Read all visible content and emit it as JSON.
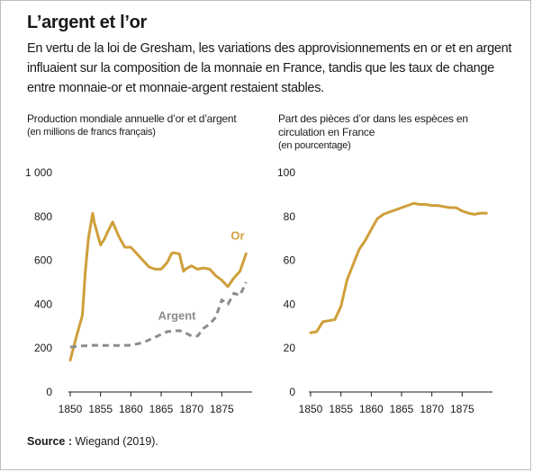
{
  "title": "L’argent et l’or",
  "subtitle": "En vertu de la loi de Gresham, les variations des approvisionnements en or et en argent influaient sur la composition de la monnaie en France, tandis que les taux de change entre monnaie-or et monnaie-argent restaient stables.",
  "source": {
    "label": "Source :",
    "text": "Wiegand (2019)."
  },
  "colors": {
    "gold": "#cf9f3a",
    "silver": "#8c8c8c",
    "axis": "#1a1a1a"
  },
  "chart_data": [
    {
      "type": "line",
      "title": "Production mondiale annuelle d’or et d’argent",
      "subtitle": "(en millions de francs français)",
      "xlabel": "",
      "ylabel": "",
      "xlim": [
        1850,
        1880
      ],
      "ylim": [
        0,
        1000
      ],
      "xticks": [
        1850,
        1855,
        1860,
        1865,
        1870,
        1875
      ],
      "xtick_labels": [
        "1850",
        "1855",
        "1860",
        "1865",
        "1870",
        "1875"
      ],
      "yticks": [
        0,
        200,
        400,
        600,
        800,
        1000
      ],
      "ytick_labels": [
        "0",
        "200",
        "400",
        "600",
        "800",
        "1 000"
      ],
      "grid": false,
      "series": [
        {
          "name": "Or",
          "color": "#cf9f3a",
          "dash": false,
          "x": [
            1850,
            1851,
            1852,
            1852.5,
            1853,
            1853.7,
            1854,
            1855,
            1855.7,
            1856,
            1857,
            1858,
            1859,
            1860,
            1861,
            1862,
            1863,
            1864,
            1865,
            1866,
            1866.7,
            1867,
            1868,
            1868.7,
            1869,
            1870,
            1871,
            1872,
            1873,
            1874,
            1875,
            1876,
            1877,
            1878,
            1879
          ],
          "values": [
            145,
            250,
            350,
            550,
            700,
            815,
            770,
            670,
            700,
            720,
            775,
            710,
            660,
            660,
            630,
            600,
            570,
            560,
            560,
            590,
            630,
            635,
            630,
            550,
            560,
            575,
            560,
            565,
            560,
            530,
            510,
            480,
            520,
            550,
            630
          ]
        },
        {
          "name": "Argent",
          "color": "#8c8c8c",
          "dash": true,
          "x": [
            1850,
            1852,
            1854,
            1856,
            1858,
            1860,
            1862,
            1864,
            1866,
            1868,
            1869,
            1870,
            1871,
            1872,
            1873,
            1874,
            1875,
            1876,
            1877,
            1878,
            1879
          ],
          "values": [
            205,
            210,
            213,
            212,
            212,
            213,
            225,
            250,
            275,
            280,
            270,
            255,
            255,
            290,
            310,
            340,
            420,
            400,
            450,
            440,
            500
          ]
        }
      ]
    },
    {
      "type": "line",
      "title": "Part des pièces d’or dans les espèces en circulation en France",
      "subtitle": "(en pourcentage)",
      "xlabel": "",
      "ylabel": "",
      "xlim": [
        1850,
        1880
      ],
      "ylim": [
        0,
        100
      ],
      "xticks": [
        1850,
        1855,
        1860,
        1865,
        1870,
        1875
      ],
      "xtick_labels": [
        "1850",
        "1855",
        "1860",
        "1865",
        "1870",
        "1875"
      ],
      "yticks": [
        0,
        20,
        40,
        60,
        80,
        100
      ],
      "ytick_labels": [
        "0",
        "20",
        "40",
        "60",
        "80",
        "100"
      ],
      "grid": false,
      "series": [
        {
          "name": "",
          "color": "#cf9f3a",
          "dash": false,
          "x": [
            1850,
            1851,
            1852,
            1853,
            1854,
            1855,
            1856,
            1857,
            1858,
            1859,
            1860,
            1861,
            1862,
            1863,
            1864,
            1865,
            1866,
            1867,
            1868,
            1869,
            1870,
            1871,
            1872,
            1873,
            1874,
            1875,
            1876,
            1877,
            1878,
            1879
          ],
          "values": [
            27,
            27.5,
            32,
            32.5,
            33,
            39,
            51,
            58,
            65,
            69,
            74,
            79,
            81,
            82,
            83,
            84,
            85,
            86,
            85.5,
            85.5,
            85,
            85,
            84.5,
            84,
            84,
            82.5,
            81.5,
            81,
            81.5,
            81.5
          ]
        }
      ]
    }
  ],
  "annotations": {
    "or_label": "Or",
    "argent_label": "Argent"
  }
}
